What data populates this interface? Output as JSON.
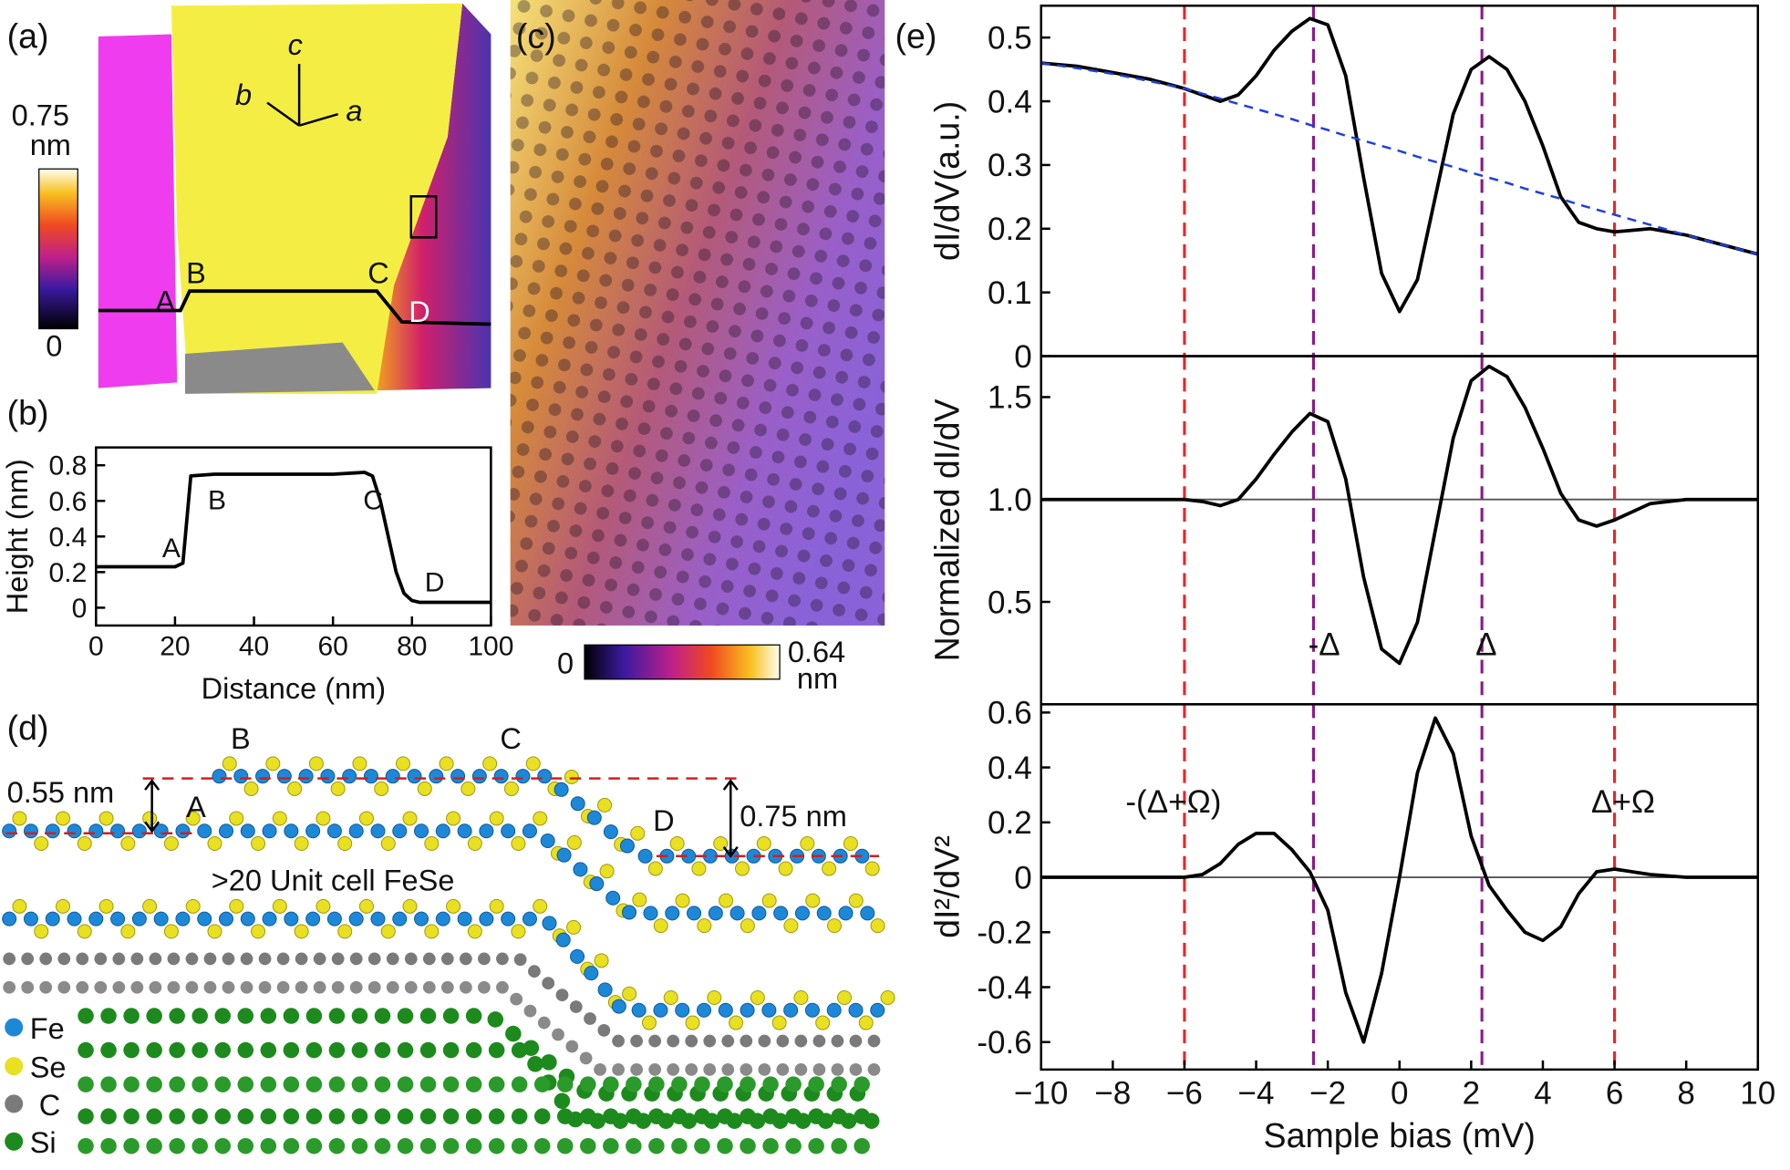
{
  "chart_data": [
    {
      "type": "line",
      "panel_label": "(b)",
      "x_label": "Distance (nm)",
      "y_label": "Height (nm)",
      "x": [
        0,
        20,
        22,
        24,
        30,
        60,
        68,
        70,
        72,
        74,
        76,
        78,
        80,
        82,
        100
      ],
      "series": [
        {
          "color": "#000000",
          "values": [
            0.23,
            0.23,
            0.25,
            0.74,
            0.75,
            0.75,
            0.76,
            0.74,
            0.6,
            0.4,
            0.2,
            0.08,
            0.04,
            0.03,
            0.03
          ]
        }
      ],
      "xlim": [
        0,
        100
      ],
      "xticks": [
        0,
        20,
        40,
        60,
        80,
        100
      ],
      "ylim": [
        -0.1,
        0.9
      ],
      "yticks": [
        0,
        0.2,
        0.4,
        0.6,
        0.8
      ],
      "annotations": [
        "A",
        "B",
        "C",
        "D"
      ]
    },
    {
      "type": "line",
      "panel_label": "(e)",
      "y_label": "dI/dV(a.u.)",
      "x": [
        -10,
        -9,
        -8,
        -7,
        -6,
        -5.5,
        -5,
        -4.5,
        -4,
        -3.5,
        -3,
        -2.5,
        -2,
        -1.5,
        -1,
        -0.5,
        0,
        0.5,
        1,
        1.5,
        2,
        2.5,
        3,
        3.5,
        4,
        4.5,
        5,
        5.5,
        6,
        7,
        8,
        9,
        10
      ],
      "series": [
        {
          "color": "#000000",
          "style": "solid",
          "values": [
            0.46,
            0.455,
            0.445,
            0.435,
            0.42,
            0.41,
            0.4,
            0.41,
            0.44,
            0.48,
            0.51,
            0.53,
            0.52,
            0.44,
            0.28,
            0.13,
            0.07,
            0.12,
            0.25,
            0.38,
            0.45,
            0.47,
            0.45,
            0.4,
            0.33,
            0.25,
            0.21,
            0.2,
            0.195,
            0.2,
            0.19,
            0.175,
            0.16
          ]
        },
        {
          "color": "#1f3fe0",
          "style": "dashed",
          "values": [
            0.46,
            0.452,
            0.443,
            0.432,
            0.42,
            0.412,
            0.404,
            0.396,
            0.388,
            0.38,
            0.372,
            0.363,
            0.355,
            0.346,
            0.338,
            0.33,
            0.322,
            0.313,
            0.305,
            0.297,
            0.288,
            0.28,
            0.272,
            0.263,
            0.255,
            0.247,
            0.238,
            0.23,
            0.222,
            0.206,
            0.19,
            0.175,
            0.16
          ]
        }
      ],
      "xlim": [
        -10,
        10
      ],
      "ylim": [
        0,
        0.55
      ],
      "yticks": [
        0,
        0.1,
        0.2,
        0.3,
        0.4,
        0.5
      ],
      "reference_x": [
        {
          "x": -6,
          "color": "#e8262b"
        },
        {
          "x": -2.4,
          "color": "#8b1a8b"
        },
        {
          "x": 2.3,
          "color": "#8b1a8b"
        },
        {
          "x": 6,
          "color": "#e8262b"
        }
      ],
      "annotations": []
    },
    {
      "type": "line",
      "y_label": "Normalized dI/dV",
      "x": [
        -10,
        -9,
        -8,
        -7,
        -6,
        -5.5,
        -5,
        -4.5,
        -4,
        -3.5,
        -3,
        -2.5,
        -2,
        -1.5,
        -1,
        -0.5,
        0,
        0.5,
        1,
        1.5,
        2,
        2.5,
        3,
        3.5,
        4,
        4.5,
        5,
        5.5,
        6,
        7,
        8,
        9,
        10
      ],
      "series": [
        {
          "color": "#000000",
          "style": "solid",
          "values": [
            1.0,
            1.0,
            1.0,
            1.0,
            1.0,
            0.99,
            0.97,
            1.0,
            1.1,
            1.22,
            1.33,
            1.42,
            1.38,
            1.1,
            0.62,
            0.27,
            0.2,
            0.4,
            0.85,
            1.3,
            1.58,
            1.65,
            1.6,
            1.45,
            1.25,
            1.03,
            0.9,
            0.87,
            0.9,
            0.98,
            1.0,
            1.0,
            1.0
          ]
        }
      ],
      "xlim": [
        -10,
        10
      ],
      "ylim": [
        0,
        1.7
      ],
      "yticks": [
        0.5,
        {
          "value": 1,
          "label": "1.0"
        },
        1.5
      ],
      "reference_y": 1,
      "reference_color": "#555555",
      "reference_x": [
        {
          "x": -6,
          "color": "#e8262b"
        },
        {
          "x": -2.4,
          "color": "#8b1a8b"
        },
        {
          "x": 2.3,
          "color": "#8b1a8b"
        },
        {
          "x": 6,
          "color": "#e8262b"
        }
      ],
      "annotations": [
        "-Δ",
        "Δ"
      ]
    },
    {
      "type": "line",
      "y_label": "dI²/dV²",
      "x_label": "Sample bias (mV)",
      "x": [
        -10,
        -9,
        -8,
        -7,
        -6,
        -5.5,
        -5,
        -4.5,
        -4,
        -3.5,
        -3,
        -2.5,
        -2,
        -1.5,
        -1,
        -0.5,
        0,
        0.5,
        1,
        1.5,
        2,
        2.5,
        3,
        3.5,
        4,
        4.5,
        5,
        5.5,
        6,
        7,
        8,
        9,
        10
      ],
      "series": [
        {
          "color": "#000000",
          "style": "solid",
          "values": [
            0,
            0,
            0,
            0,
            0,
            0.01,
            0.05,
            0.12,
            0.16,
            0.16,
            0.1,
            0.02,
            -0.12,
            -0.42,
            -0.6,
            -0.35,
            0,
            0.38,
            0.58,
            0.45,
            0.15,
            -0.03,
            -0.12,
            -0.2,
            -0.23,
            -0.18,
            -0.06,
            0.02,
            0.03,
            0.01,
            0,
            0,
            0
          ]
        }
      ],
      "xlim": [
        -10,
        10
      ],
      "ylim": [
        -0.7,
        0.63
      ],
      "xticks": [
        {
          "value": -10,
          "label": "−10"
        },
        {
          "value": -8,
          "label": "−8"
        },
        {
          "value": -6,
          "label": "−6"
        },
        {
          "value": -4,
          "label": "−4"
        },
        {
          "value": -2,
          "label": "−2"
        },
        0,
        2,
        4,
        6,
        8,
        10
      ],
      "yticks": [
        -0.6,
        -0.4,
        -0.2,
        0,
        0.2,
        0.4,
        0.6
      ],
      "reference_y": 0,
      "reference_color": "#555555",
      "reference_x": [
        {
          "x": -6,
          "color": "#e8262b"
        },
        {
          "x": -2.4,
          "color": "#8b1a8b"
        },
        {
          "x": 2.3,
          "color": "#8b1a8b"
        },
        {
          "x": 6,
          "color": "#e8262b"
        }
      ],
      "annotations": [
        "-(Δ+Ω)",
        "Δ+Ω"
      ]
    }
  ],
  "panel_a": {
    "label": "(a)",
    "colorbar_max": 0.75,
    "colorbar_unit": "nm",
    "colorbar_min": 0,
    "axes": [
      "c",
      "b",
      "a"
    ],
    "points": [
      "A",
      "B",
      "C",
      "D"
    ]
  },
  "panel_c": {
    "label": "(c)",
    "colorbar_min": 0,
    "colorbar_max": 0.64,
    "colorbar_unit": "nm"
  },
  "panel_d": {
    "label": "(d)",
    "step_left": "0.55 nm",
    "step_right": "0.75 nm",
    "points": [
      "B",
      "C",
      "A",
      "D"
    ],
    "caption": ">20 Unit cell FeSe",
    "legend": [
      "Fe",
      "Se",
      "C",
      "Si"
    ]
  }
}
